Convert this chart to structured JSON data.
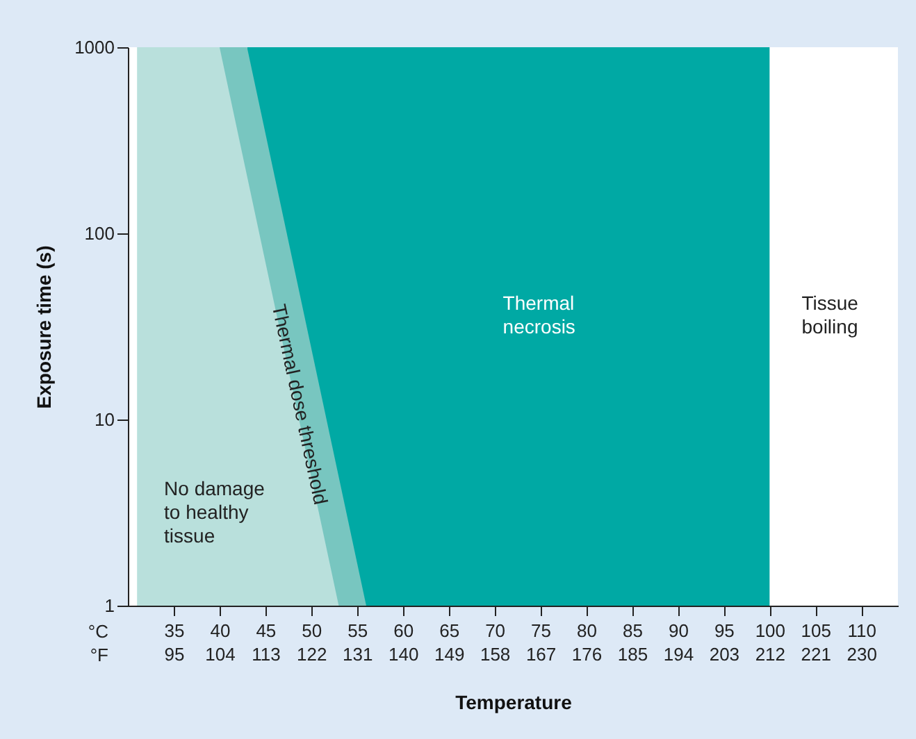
{
  "chart_data": {
    "type": "area",
    "xlabel": "Temperature",
    "ylabel": "Exposure time (s)",
    "xlim": [
      30,
      114
    ],
    "ylim": [
      1,
      1000
    ],
    "log": true,
    "grid": false,
    "yticks": [
      1,
      10,
      100,
      1000
    ],
    "xticks": [
      35,
      40,
      45,
      50,
      55,
      60,
      65,
      70,
      75,
      80,
      85,
      90,
      95,
      100,
      105,
      110
    ],
    "x2lim": [
      86,
      237.2
    ],
    "x2ticks": [
      95,
      104,
      113,
      122,
      131,
      140,
      149,
      158,
      167,
      176,
      185,
      194,
      203,
      212,
      221,
      230
    ],
    "series": [
      {
        "color": "#00a9a4",
        "x": [
          43,
          100
        ],
        "values": [
          1000,
          1000
        ]
      },
      {
        "color": "#78c6c0",
        "x": [
          40,
          43,
          56
        ],
        "values": [
          1000,
          1000,
          1
        ]
      },
      {
        "color": "#b9e0dc",
        "x": [
          31,
          40,
          53
        ],
        "values": [
          1000,
          1000,
          1
        ]
      }
    ],
    "annotations": [
      "No damage\nto healthy\ntissue",
      "Thermal dose threshold",
      "Thermal\nnecrosis",
      "Tissue\nboiling",
      "°C",
      "°F"
    ]
  }
}
